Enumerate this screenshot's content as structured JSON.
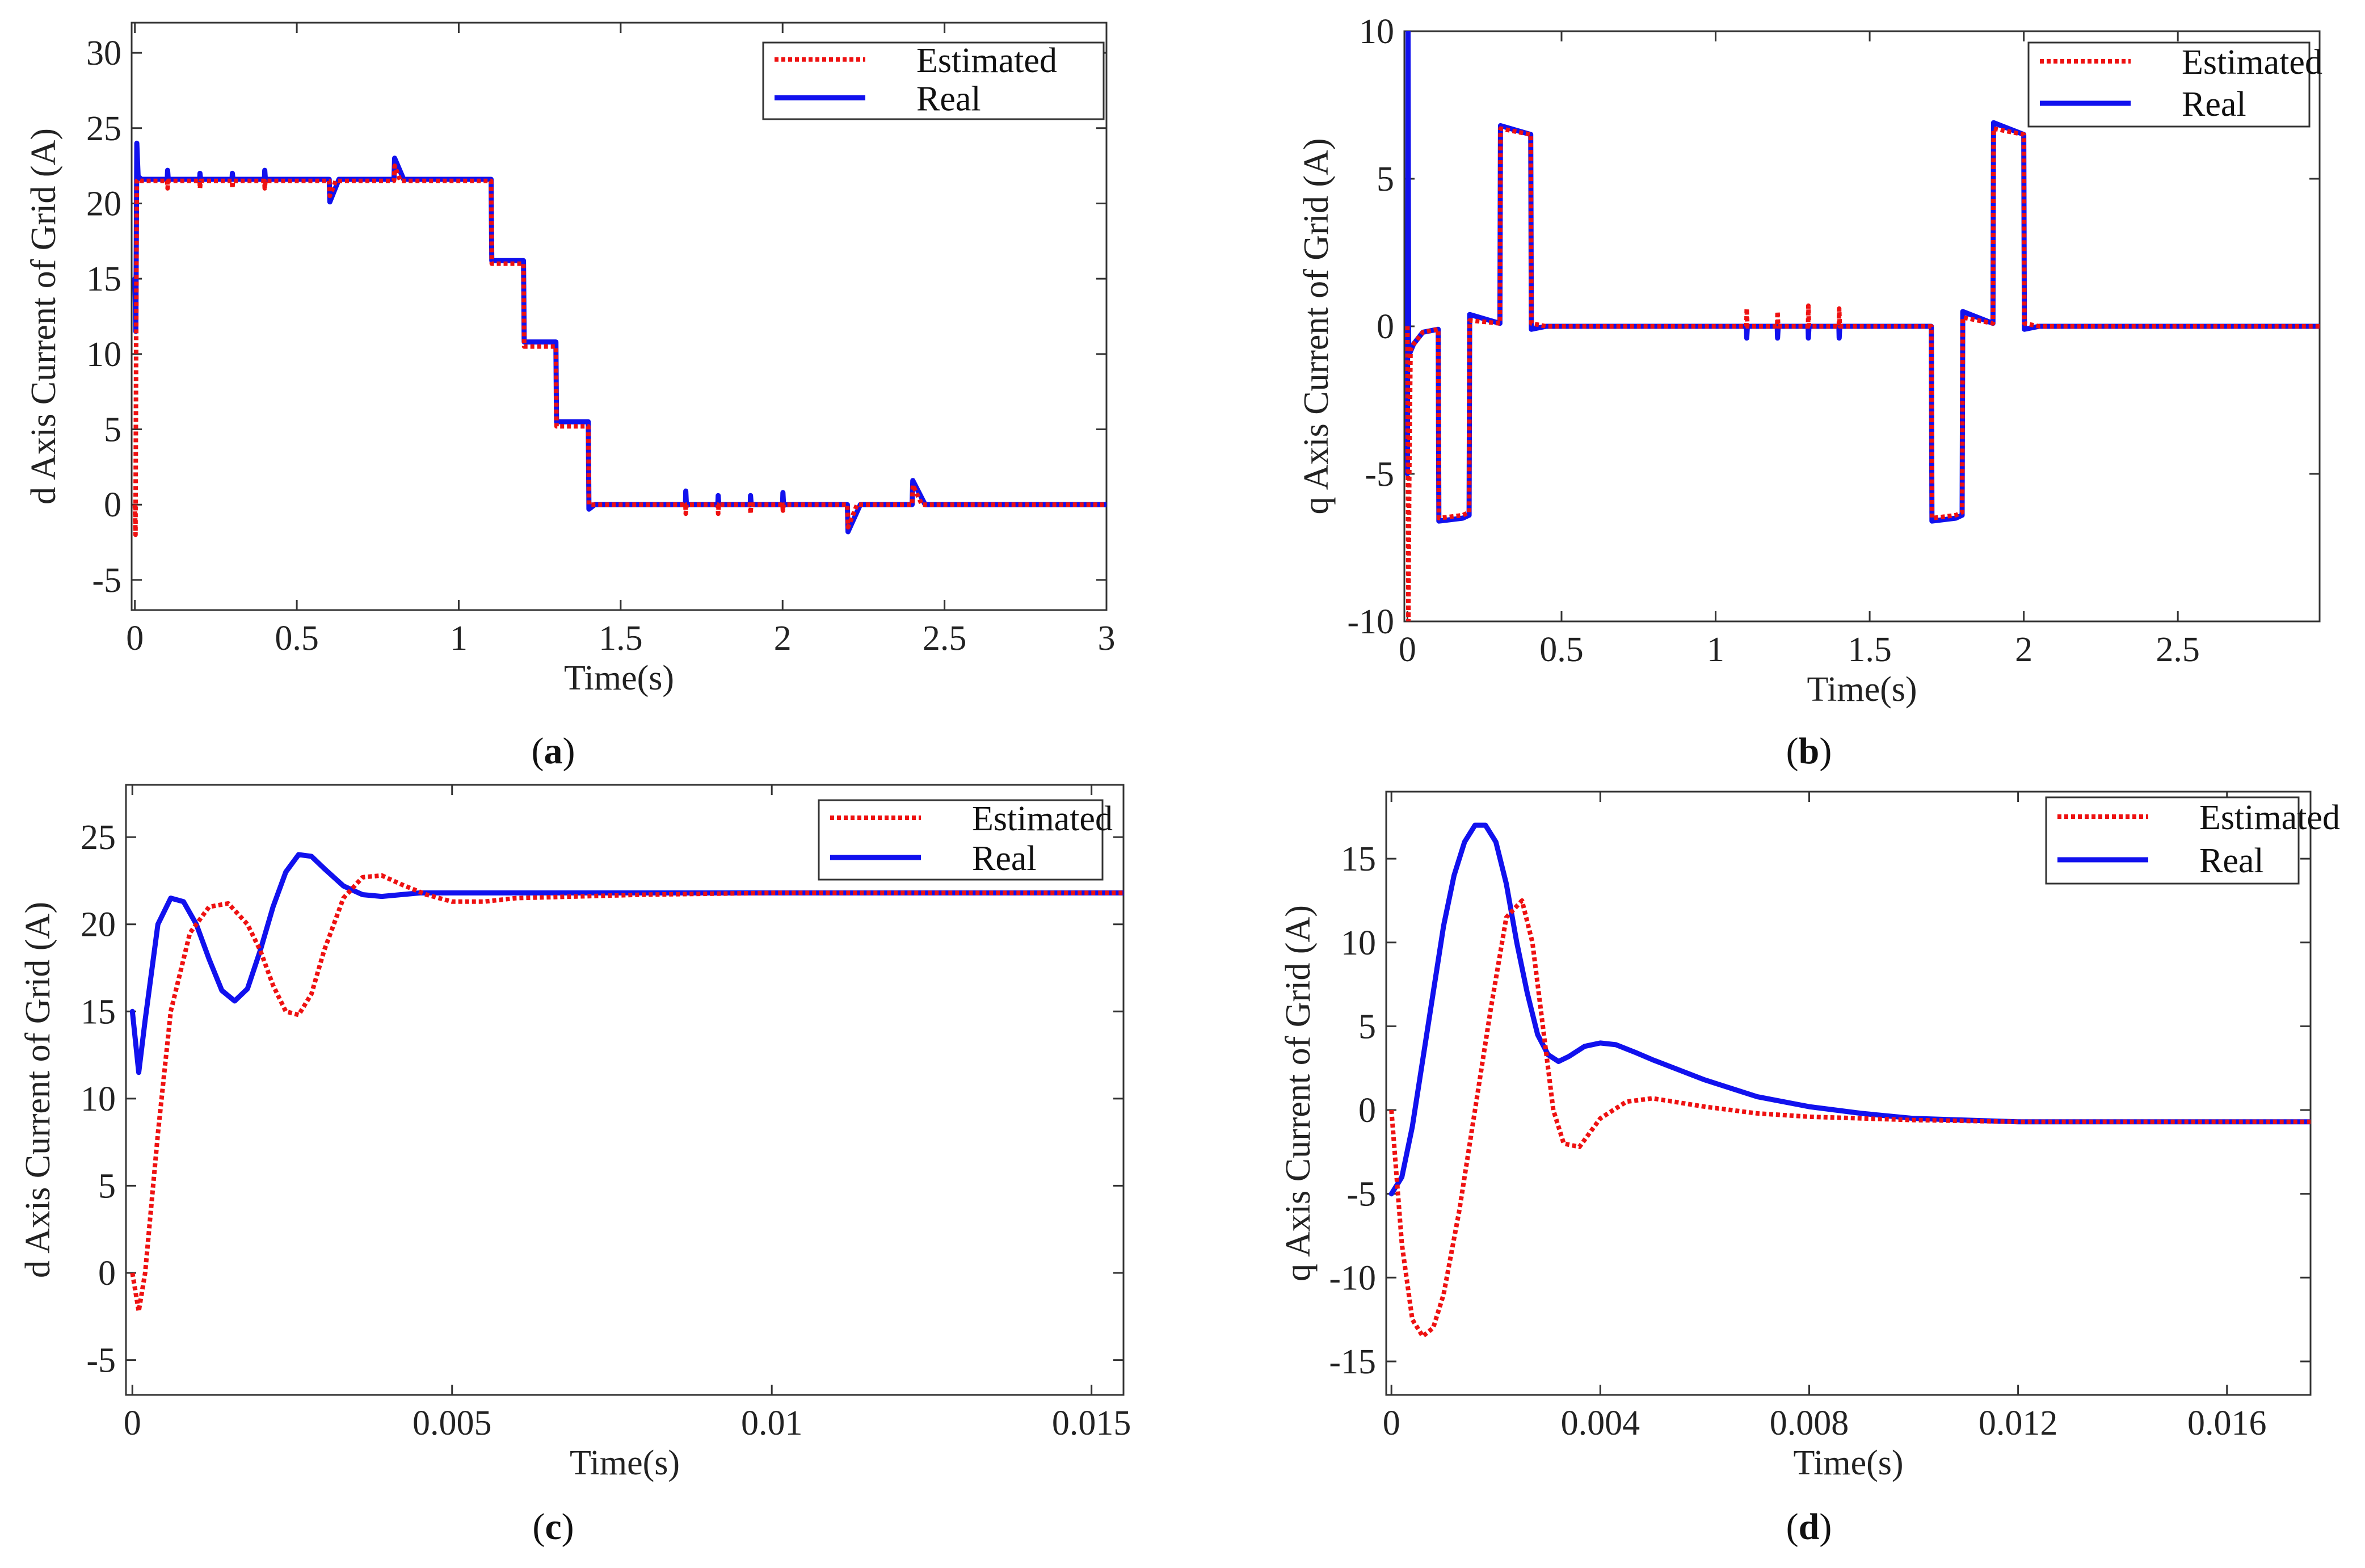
{
  "colors": {
    "estimated": "#ee1111",
    "real": "#1111ee",
    "axis": "#333333"
  },
  "charts": [
    {
      "caption": {
        "open": "(",
        "letter": "a",
        "close": ")"
      },
      "legend": [
        "Estimated",
        "Real"
      ],
      "chart_data": {
        "type": "line",
        "title": "",
        "xlabel": "Time(s)",
        "ylabel": "d Axis Current of Grid (A)",
        "xlim": [
          -0.01,
          3.0
        ],
        "ylim": [
          -7,
          32
        ],
        "xticks": [
          0,
          0.5,
          1,
          1.5,
          2,
          2.5,
          3
        ],
        "xticklabels": [
          "0",
          "0.5",
          "1",
          "1.5",
          "2",
          "2.5",
          "3"
        ],
        "yticks": [
          -5,
          0,
          5,
          10,
          15,
          20,
          25,
          30
        ],
        "yticklabels": [
          "-5",
          "0",
          "5",
          "10",
          "15",
          "20",
          "25",
          "30"
        ],
        "series": [
          {
            "name": "Estimated",
            "style": "dotted",
            "x": [
              0,
              0.002,
              0.004,
              0.006,
              0.01,
              0.02,
              0.1,
              0.101,
              0.103,
              0.2,
              0.201,
              0.203,
              0.3,
              0.301,
              0.303,
              0.4,
              0.401,
              0.403,
              0.6,
              0.602,
              0.62,
              0.8,
              0.802,
              0.82,
              1.1,
              1.102,
              1.2,
              1.202,
              1.3,
              1.302,
              1.4,
              1.402,
              1.7,
              1.701,
              1.703,
              1.8,
              1.801,
              1.803,
              1.9,
              1.901,
              1.903,
              2.0,
              2.001,
              2.003,
              2.2,
              2.202,
              2.23,
              2.4,
              2.402,
              2.43,
              3.0
            ],
            "y": [
              0,
              -2,
              11,
              21.5,
              21.6,
              21.5,
              21.5,
              21.0,
              21.5,
              21.5,
              21.0,
              21.5,
              21.5,
              21.0,
              21.5,
              21.5,
              21.0,
              21.5,
              21.5,
              20.5,
              21.5,
              21.5,
              22.5,
              21.5,
              21.5,
              16,
              16,
              10.5,
              10.5,
              5.2,
              5.2,
              0,
              0,
              -0.6,
              0,
              0,
              -0.6,
              0,
              0,
              -0.6,
              0,
              0,
              -0.4,
              0,
              0,
              -1.5,
              0,
              0,
              1.3,
              0,
              0
            ]
          },
          {
            "name": "Real",
            "style": "solid",
            "x": [
              0,
              0.003,
              0.006,
              0.01,
              0.02,
              0.1,
              0.101,
              0.103,
              0.2,
              0.201,
              0.203,
              0.3,
              0.301,
              0.303,
              0.4,
              0.401,
              0.403,
              0.6,
              0.602,
              0.63,
              0.8,
              0.802,
              0.83,
              1.1,
              1.102,
              1.2,
              1.202,
              1.3,
              1.302,
              1.4,
              1.402,
              1.42,
              1.7,
              1.701,
              1.703,
              1.8,
              1.801,
              1.803,
              1.9,
              1.901,
              1.903,
              2.0,
              2.001,
              2.003,
              2.2,
              2.202,
              2.24,
              2.4,
              2.402,
              2.44,
              3.0
            ],
            "y": [
              15,
              11.5,
              24,
              21.8,
              21.6,
              21.6,
              22.2,
              21.6,
              21.6,
              22.0,
              21.6,
              21.6,
              22.0,
              21.6,
              21.6,
              22.2,
              21.6,
              21.6,
              20.1,
              21.6,
              21.6,
              23.0,
              21.6,
              21.6,
              16.2,
              16.2,
              10.8,
              10.8,
              5.5,
              5.5,
              -0.3,
              0,
              0,
              0.9,
              0,
              0,
              0.6,
              0,
              0,
              0.6,
              0,
              0,
              0.8,
              0,
              0,
              -1.8,
              0,
              0,
              1.6,
              0,
              0
            ]
          }
        ]
      }
    },
    {
      "caption": {
        "open": "(",
        "letter": "b",
        "close": ")"
      },
      "legend": [
        "Estimated",
        "Real"
      ],
      "chart_data": {
        "type": "line",
        "title": "",
        "xlabel": "Time(s)",
        "ylabel": "q Axis Current of Grid (A)",
        "xlim": [
          -0.01,
          2.96
        ],
        "ylim": [
          -10,
          10
        ],
        "xticks": [
          0,
          0.5,
          1,
          1.5,
          2,
          2.5
        ],
        "xticklabels": [
          "0",
          "0.5",
          "1",
          "1.5",
          "2",
          "2.5"
        ],
        "yticks": [
          -10,
          -5,
          0,
          5,
          10
        ],
        "yticklabels": [
          "-10",
          "-5",
          "0",
          "5",
          "10"
        ],
        "series": [
          {
            "name": "Estimated",
            "style": "dotted",
            "x": [
              0,
              0.003,
              0.006,
              0.01,
              0.02,
              0.05,
              0.1,
              0.102,
              0.18,
              0.2,
              0.202,
              0.3,
              0.302,
              0.4,
              0.402,
              0.45,
              1.1,
              1.101,
              1.103,
              1.2,
              1.201,
              1.203,
              1.3,
              1.301,
              1.303,
              1.4,
              1.401,
              1.403,
              1.7,
              1.702,
              1.78,
              1.8,
              1.802,
              1.9,
              1.902,
              2.0,
              2.002,
              2.05,
              2.96
            ],
            "y": [
              0,
              -10,
              -5,
              -0.8,
              -0.6,
              -0.2,
              -0.1,
              -6.5,
              -6.4,
              -6.3,
              0.2,
              0.1,
              6.7,
              6.5,
              0.1,
              0,
              0,
              0.6,
              0,
              0,
              0.5,
              0,
              0,
              0.7,
              0,
              0,
              0.6,
              0,
              0,
              -6.5,
              -6.4,
              -6.3,
              0.3,
              0.1,
              6.7,
              6.5,
              0.1,
              0,
              0
            ]
          },
          {
            "name": "Real",
            "style": "solid",
            "x": [
              0,
              0.002,
              0.004,
              0.008,
              0.02,
              0.05,
              0.1,
              0.102,
              0.18,
              0.2,
              0.202,
              0.3,
              0.302,
              0.4,
              0.402,
              0.45,
              1.1,
              1.101,
              1.103,
              1.2,
              1.201,
              1.203,
              1.3,
              1.301,
              1.303,
              1.4,
              1.401,
              1.403,
              1.7,
              1.702,
              1.78,
              1.8,
              1.802,
              1.9,
              1.902,
              2.0,
              2.002,
              2.05,
              2.96
            ],
            "y": [
              -5,
              10,
              -0.8,
              -0.9,
              -0.6,
              -0.2,
              -0.1,
              -6.6,
              -6.5,
              -6.4,
              0.4,
              0.1,
              6.8,
              6.5,
              -0.1,
              0,
              0,
              -0.4,
              0,
              0,
              -0.4,
              0,
              0,
              -0.4,
              0,
              0,
              -0.4,
              0,
              0,
              -6.6,
              -6.5,
              -6.4,
              0.5,
              0.1,
              6.9,
              6.5,
              -0.1,
              0,
              0
            ]
          }
        ]
      }
    },
    {
      "caption": {
        "open": "(",
        "letter": "c",
        "close": ")"
      },
      "legend": [
        "Estimated",
        "Real"
      ],
      "chart_data": {
        "type": "line",
        "title": "",
        "xlabel": "Time(s)",
        "ylabel": "d Axis Current of Grid (A)",
        "xlim": [
          -0.0001,
          0.0155
        ],
        "ylim": [
          -7,
          28
        ],
        "xticks": [
          0,
          0.005,
          0.01,
          0.015
        ],
        "xticklabels": [
          "0",
          "0.005",
          "0.01",
          "0.015"
        ],
        "yticks": [
          -5,
          0,
          5,
          10,
          15,
          20,
          25
        ],
        "yticklabels": [
          "-5",
          "0",
          "5",
          "10",
          "15",
          "20",
          "25"
        ],
        "series": [
          {
            "name": "Estimated",
            "style": "dotted",
            "x": [
              0,
              0.0001,
              0.0002,
              0.0004,
              0.0006,
              0.0009,
              0.0012,
              0.0015,
              0.0018,
              0.002,
              0.0022,
              0.0024,
              0.0026,
              0.0028,
              0.003,
              0.0033,
              0.0036,
              0.0039,
              0.0042,
              0.0046,
              0.005,
              0.0055,
              0.006,
              0.008,
              0.01,
              0.0155
            ],
            "y": [
              0,
              -2.2,
              0,
              8,
              15,
              19.5,
              21,
              21.2,
              20,
              18.5,
              16.5,
              15,
              14.8,
              16,
              18.5,
              21.5,
              22.7,
              22.8,
              22.3,
              21.7,
              21.3,
              21.3,
              21.5,
              21.7,
              21.8,
              21.8
            ]
          },
          {
            "name": "Real",
            "style": "solid",
            "x": [
              0,
              0.0001,
              0.0002,
              0.0004,
              0.0006,
              0.0008,
              0.001,
              0.0012,
              0.0014,
              0.0016,
              0.0018,
              0.002,
              0.0022,
              0.0024,
              0.0026,
              0.0028,
              0.003,
              0.0033,
              0.0036,
              0.0039,
              0.0042,
              0.0045,
              0.0048,
              0.0052,
              0.006,
              0.008,
              0.01,
              0.0155
            ],
            "y": [
              15,
              11.5,
              14.5,
              20,
              21.5,
              21.3,
              20,
              18,
              16.2,
              15.6,
              16.3,
              18.5,
              21,
              23,
              24,
              23.9,
              23.2,
              22.2,
              21.7,
              21.6,
              21.7,
              21.8,
              21.8,
              21.8,
              21.8,
              21.8,
              21.8,
              21.8
            ]
          }
        ]
      }
    },
    {
      "caption": {
        "open": "(",
        "letter": "d",
        "close": ")"
      },
      "legend": [
        "Estimated",
        "Real"
      ],
      "chart_data": {
        "type": "line",
        "title": "",
        "xlabel": "Time(s)",
        "ylabel": "q Axis Current of Grid (A)",
        "xlim": [
          -0.0001,
          0.0176
        ],
        "ylim": [
          -17,
          19
        ],
        "xticks": [
          0,
          0.004,
          0.008,
          0.012,
          0.016
        ],
        "xticklabels": [
          "0",
          "0.004",
          "0.008",
          "0.012",
          "0.016"
        ],
        "yticks": [
          -15,
          -10,
          -5,
          0,
          5,
          10,
          15
        ],
        "yticklabels": [
          "-15",
          "-10",
          "-5",
          "0",
          "5",
          "10",
          "15"
        ],
        "series": [
          {
            "name": "Estimated",
            "style": "dotted",
            "x": [
              0,
              0.0002,
              0.0004,
              0.0006,
              0.0008,
              0.001,
              0.0013,
              0.0016,
              0.0019,
              0.0022,
              0.0025,
              0.0027,
              0.0029,
              0.0031,
              0.0033,
              0.0036,
              0.004,
              0.0045,
              0.005,
              0.006,
              0.007,
              0.008,
              0.01,
              0.012,
              0.0176
            ],
            "y": [
              0,
              -8,
              -12.5,
              -13.5,
              -13,
              -11,
              -6,
              0,
              6,
              11.5,
              12.5,
              10,
              5,
              0,
              -2,
              -2.2,
              -0.5,
              0.5,
              0.7,
              0.2,
              -0.2,
              -0.4,
              -0.6,
              -0.7,
              -0.7
            ]
          },
          {
            "name": "Real",
            "style": "solid",
            "x": [
              0,
              0.0002,
              0.0004,
              0.0006,
              0.0008,
              0.001,
              0.0012,
              0.0014,
              0.0016,
              0.0018,
              0.002,
              0.0022,
              0.0024,
              0.0026,
              0.0028,
              0.003,
              0.0032,
              0.0034,
              0.0037,
              0.004,
              0.0043,
              0.0047,
              0.005,
              0.006,
              0.007,
              0.008,
              0.009,
              0.01,
              0.011,
              0.012,
              0.0176
            ],
            "y": [
              -5,
              -4,
              -1,
              3,
              7,
              11,
              14,
              16,
              17,
              17,
              16,
              13.5,
              10,
              7,
              4.5,
              3.3,
              2.9,
              3.2,
              3.8,
              4,
              3.9,
              3.4,
              3.0,
              1.8,
              0.8,
              0.2,
              -0.2,
              -0.5,
              -0.6,
              -0.7,
              -0.7
            ]
          }
        ]
      }
    }
  ]
}
